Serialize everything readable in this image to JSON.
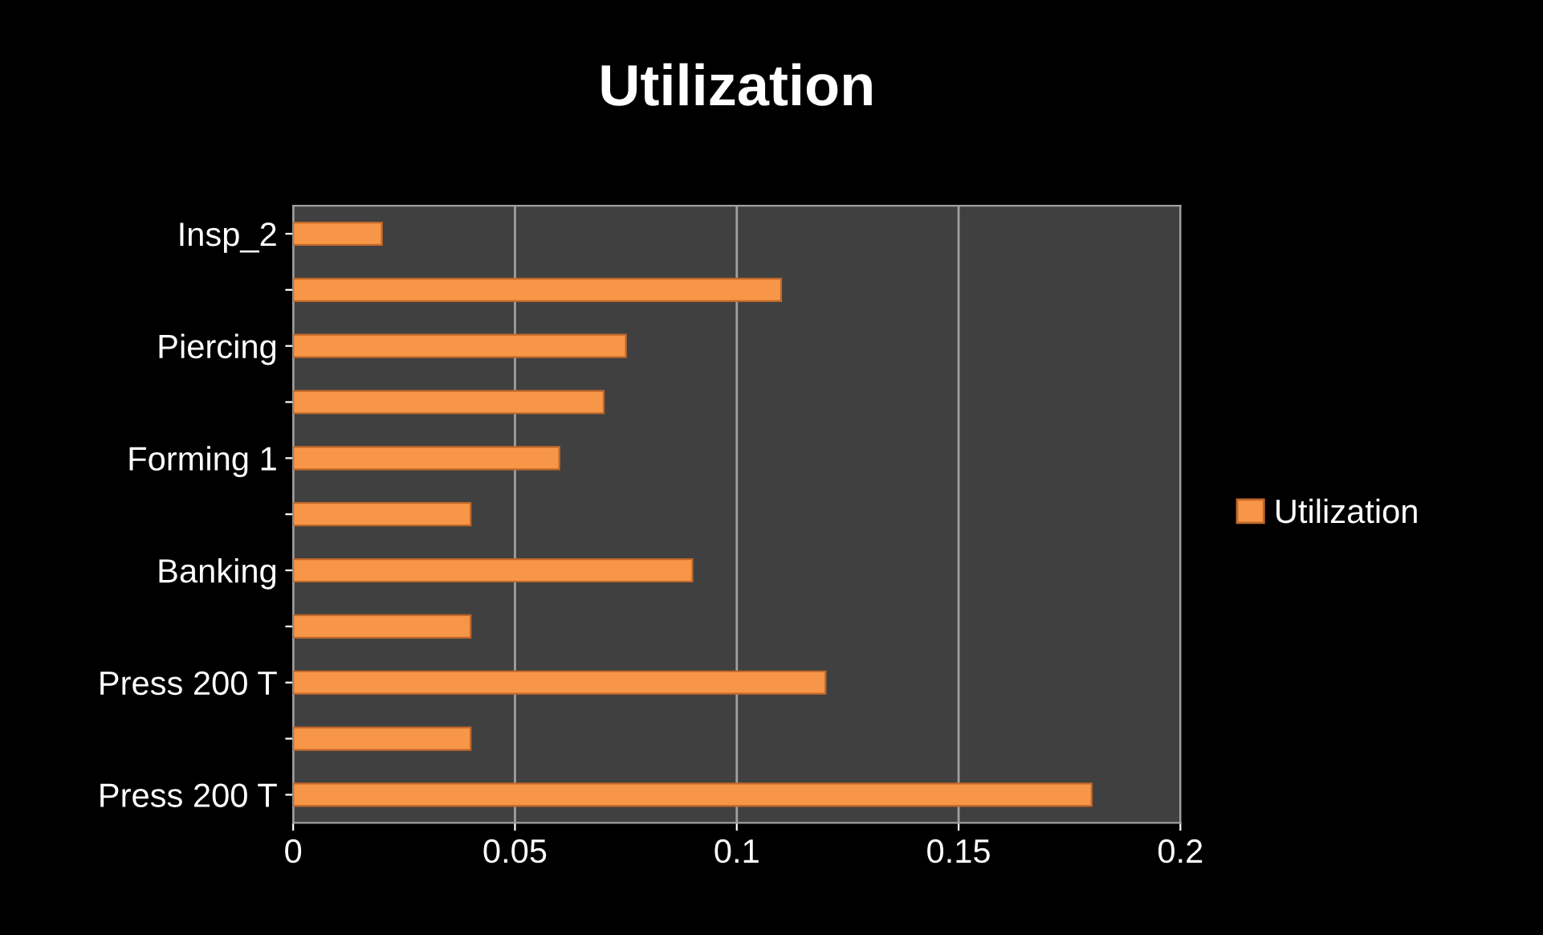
{
  "chart_data": {
    "type": "bar",
    "orientation": "horizontal",
    "title": "Utilization",
    "categories": [
      "Insp_2",
      null,
      "Piercing",
      null,
      "Forming 1",
      null,
      "Banking",
      null,
      "Press 200 T",
      null,
      "Press 200 T"
    ],
    "series": [
      {
        "name": "Utilization",
        "color": "#f79646",
        "values": [
          0.02,
          0.11,
          0.075,
          0.07,
          0.06,
          0.04,
          0.09,
          0.04,
          0.12,
          0.04,
          0.18
        ]
      }
    ],
    "xlim": [
      0,
      0.2
    ],
    "xticks": [
      0,
      0.05,
      0.1,
      0.15,
      0.2
    ],
    "grid": "x",
    "legend": "right"
  }
}
